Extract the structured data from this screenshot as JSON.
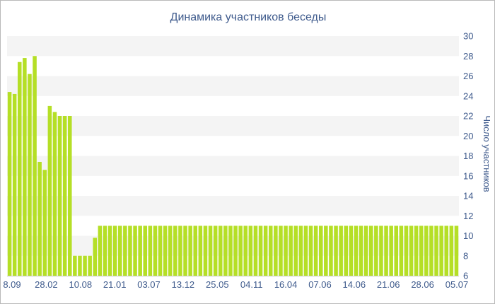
{
  "chart_data": {
    "type": "bar",
    "title": "Динамика участников беседы",
    "ylabel": "Число участников",
    "xlabel": "",
    "ylim": [
      6,
      30
    ],
    "yticks": [
      6,
      8,
      10,
      12,
      14,
      16,
      18,
      20,
      22,
      24,
      26,
      28,
      30
    ],
    "y_axis_side": "right",
    "grid": "alternating horizontal bands",
    "bar_color": "#b5df26",
    "band_color": "#f4f4f4",
    "text_color": "#3e5a8c",
    "x_tick_labels": [
      "8.09",
      "28.02",
      "10.08",
      "21.01",
      "03.07",
      "13.12",
      "25.05",
      "04.11",
      "16.04",
      "07.06",
      "14.06",
      "21.06",
      "28.06",
      "05.07"
    ],
    "values": [
      24.4,
      24.2,
      27.4,
      27.8,
      26.2,
      28.0,
      17.4,
      16.6,
      23.0,
      22.4,
      22.0,
      22.0,
      22.0,
      8.0,
      8.0,
      8.0,
      8.0,
      9.8,
      11,
      11,
      11,
      11,
      11,
      11,
      11,
      11,
      11,
      11,
      11,
      11,
      11,
      11,
      11,
      11,
      11,
      11,
      11,
      11,
      11,
      11,
      11,
      11,
      11,
      11,
      11,
      11,
      11,
      11,
      11,
      11,
      11,
      11,
      11,
      11,
      11,
      11,
      11,
      11,
      11,
      11,
      11,
      11,
      11,
      11,
      11,
      11,
      11,
      11,
      11,
      11,
      11,
      11,
      11,
      11,
      11,
      11,
      11,
      11,
      11,
      11,
      11,
      11,
      11,
      11,
      11,
      11,
      11,
      11,
      11,
      11
    ]
  }
}
